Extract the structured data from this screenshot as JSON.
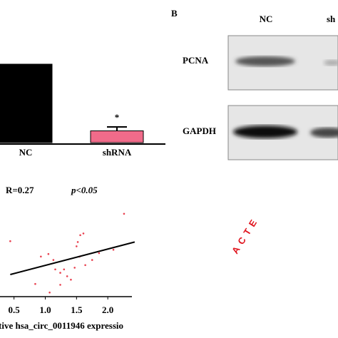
{
  "chart_data": [
    {
      "type": "bar",
      "categories": [
        "NC",
        "shRNA"
      ],
      "values": [
        1.0,
        0.15
      ],
      "errors": [
        null,
        0.05
      ],
      "colors": [
        "#000000",
        "#f06b8a"
      ],
      "annotations": [
        null,
        "*"
      ],
      "ylim": [
        0,
        1.2
      ]
    },
    {
      "type": "scatter",
      "stat_r": "R=0.27",
      "stat_p": "p<0.05",
      "x_label": "tive hsa_circ_0011946  expressio",
      "x": [
        0.44,
        0.93,
        1.05,
        1.13,
        1.16,
        1.24,
        1.3,
        1.35,
        1.41,
        1.47,
        1.5,
        1.52,
        1.56,
        1.61,
        1.55,
        1.64,
        1.75,
        1.86,
        2.09,
        2.26,
        0.84,
        1.07,
        1.24
      ],
      "values": [
        0.64,
        0.46,
        0.49,
        0.42,
        0.31,
        0.27,
        0.31,
        0.23,
        0.19,
        0.33,
        0.58,
        0.63,
        0.71,
        0.73,
        0.46,
        0.36,
        0.42,
        0.5,
        0.54,
        0.96,
        0.14,
        0.04,
        0.13
      ],
      "color": "#e8404f",
      "fit_x": [
        0.44,
        2.43
      ],
      "fit_values": [
        0.25,
        0.63
      ],
      "fit_color": "#000000",
      "xlim": [
        0.39,
        2.5
      ],
      "ylim": [
        0,
        1
      ],
      "xticks": [
        0.5,
        {
          "value": 1,
          "label": "1.0"
        },
        1.5,
        {
          "value": 2,
          "label": "2.0"
        }
      ]
    }
  ],
  "panel_b": {
    "letter": "B",
    "lanes": [
      "NC",
      "sh"
    ],
    "rows": [
      "PCNA",
      "GAPDH"
    ]
  },
  "watermark": "ACTE"
}
